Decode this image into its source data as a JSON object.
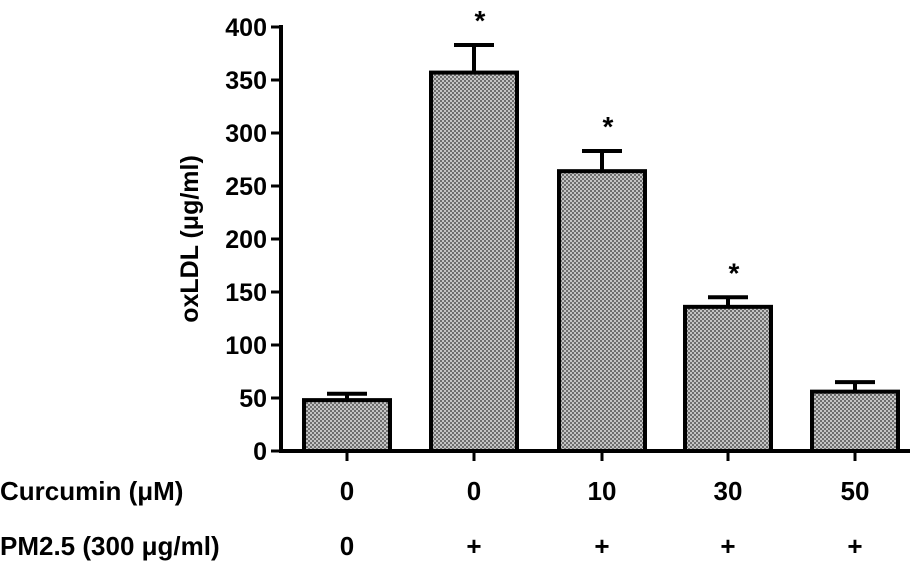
{
  "chart_data": {
    "type": "bar",
    "title": "",
    "xlabel": "",
    "ylabel": "oxLDL (μg/ml)",
    "ylim": [
      0,
      400
    ],
    "yticks": [
      "0",
      "50",
      "100",
      "150",
      "200",
      "250",
      "300",
      "350",
      "400"
    ],
    "categories": [
      "0",
      "0",
      "10",
      "30",
      "50"
    ],
    "values": [
      48,
      357,
      264,
      136,
      56
    ],
    "error_bars": [
      6,
      26,
      19,
      9,
      9
    ],
    "significance": [
      "",
      "*",
      "*",
      "*",
      ""
    ],
    "grid": false,
    "bar_fill": "crosshatch gray",
    "row_labels": {
      "curcumin": "Curcumin (μM)",
      "pm25": "PM2.5 (300 μg/ml)"
    },
    "curcumin_values": [
      "0",
      "0",
      "10",
      "30",
      "50"
    ],
    "pm25_values": [
      "0",
      "+",
      "+",
      "+",
      "+"
    ]
  }
}
